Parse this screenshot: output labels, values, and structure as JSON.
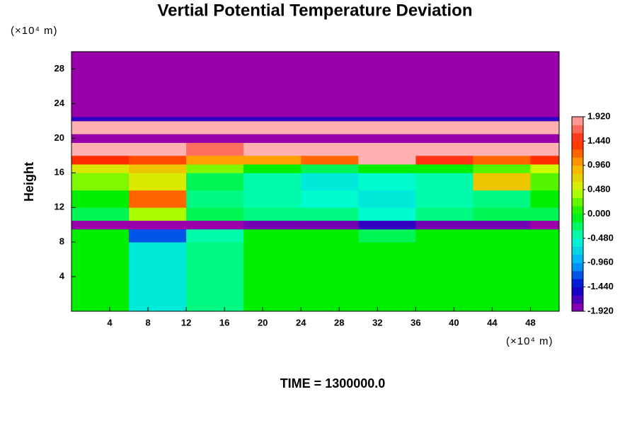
{
  "chart_data": {
    "type": "heatmap",
    "title": "Vertial Potential Temperature Deviation",
    "y_unit": "(×10⁴ m)",
    "x_unit": "(×10⁴ m)",
    "ylabel": "Height",
    "footer": "TIME = 1300000.0",
    "xlim": [
      0,
      51
    ],
    "ylim": [
      0,
      30
    ],
    "xticks": [
      4,
      8,
      12,
      16,
      20,
      24,
      28,
      32,
      36,
      40,
      44,
      48
    ],
    "yticks": [
      4,
      8,
      12,
      16,
      20,
      24,
      28
    ],
    "xbins": [
      0,
      6,
      12,
      18,
      24,
      30,
      36,
      42,
      48,
      51
    ],
    "ybins": [
      0,
      8,
      9.5,
      10.5,
      12,
      14,
      16,
      17,
      18,
      19.5,
      20.5,
      22,
      22.5,
      30
    ],
    "values": [
      [
        0,
        -0.6,
        -0.3,
        0,
        0,
        0,
        0,
        0,
        0
      ],
      [
        0,
        -1.2,
        -0.4,
        0,
        0,
        -0.2,
        0,
        0,
        0
      ],
      [
        -1.92,
        -1.92,
        -1.92,
        -1.8,
        -1.8,
        -1.6,
        -1.8,
        -1.8,
        -1.92
      ],
      [
        -0.2,
        0.4,
        -0.2,
        -0.3,
        -0.3,
        -0.5,
        -0.3,
        -0.2,
        -0.2
      ],
      [
        0,
        1.2,
        -0.3,
        -0.4,
        -0.5,
        -0.6,
        -0.4,
        -0.3,
        0
      ],
      [
        0.3,
        0.6,
        -0.2,
        -0.4,
        -0.6,
        -0.5,
        -0.4,
        0.8,
        0.2
      ],
      [
        0.6,
        0.8,
        0.3,
        0,
        -0.2,
        0,
        0,
        0.2,
        0.5
      ],
      [
        1.4,
        1.3,
        1.0,
        1.0,
        1.2,
        1.92,
        1.5,
        1.2,
        1.4
      ],
      [
        1.92,
        1.92,
        1.7,
        1.92,
        1.92,
        1.92,
        1.92,
        1.92,
        1.92
      ],
      [
        -1.92,
        -1.92,
        -1.92,
        -1.92,
        -1.92,
        -1.92,
        -1.92,
        -1.92,
        -1.92
      ],
      [
        1.92,
        1.92,
        1.92,
        1.92,
        1.92,
        1.92,
        1.92,
        1.92,
        1.92
      ],
      [
        -1.6,
        -1.6,
        -1.6,
        -1.6,
        -1.6,
        -1.6,
        -1.6,
        -1.6,
        -1.6
      ],
      [
        -1.92,
        -1.92,
        -1.92,
        -1.92,
        -1.92,
        -1.92,
        -1.92,
        -1.92,
        -1.92
      ]
    ],
    "zlim": [
      -1.92,
      1.92
    ],
    "colorscale": [
      "#9900aa",
      "#0000cc",
      "#00aaff",
      "#00ffcc",
      "#00ee00",
      "#ccff00",
      "#ffaa00",
      "#ff2200",
      "#ffb0b0"
    ],
    "zticks": [
      {
        "value": 1.92,
        "label": "1.920"
      },
      {
        "value": 1.44,
        "label": "1.440"
      },
      {
        "value": 0.96,
        "label": "0.960"
      },
      {
        "value": 0.48,
        "label": "0.480"
      },
      {
        "value": 0,
        "label": "0.000"
      },
      {
        "value": -0.48,
        "label": "-0.480"
      },
      {
        "value": -0.96,
        "label": "-0.960"
      },
      {
        "value": -1.44,
        "label": "-1.440"
      },
      {
        "value": -1.92,
        "label": "-1.920"
      }
    ]
  }
}
